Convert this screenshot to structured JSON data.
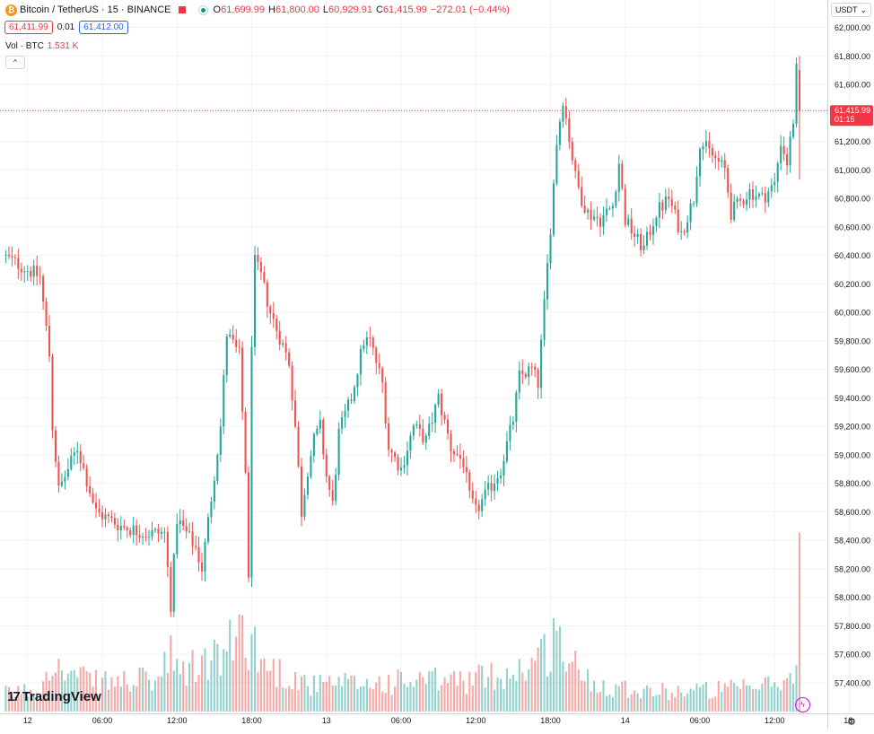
{
  "header": {
    "symbol_title": "Bitcoin / TetherUS · 15 · BINANCE",
    "ohlc": [
      {
        "k": "O",
        "v": "61,699.99"
      },
      {
        "k": "H",
        "v": "61,800.00"
      },
      {
        "k": "L",
        "v": "60,929.91"
      },
      {
        "k": "C",
        "v": "61,415.99"
      }
    ],
    "change": "−272.01 (−0.44%)",
    "bid": "61,411.99",
    "spread": "0.01",
    "ask": "61,412.00",
    "volume_label": "Vol · BTC",
    "volume_value": "1.531 K",
    "collapse_glyph": "^"
  },
  "price_scale": {
    "currency": "USDT",
    "dropdown_glyph": "⌄"
  },
  "last_price": {
    "value": "61,415.99",
    "countdown": "01:15",
    "color": "#f23645"
  },
  "branding": {
    "name": "TradingView",
    "mark": "17"
  },
  "colors": {
    "up": "#26a69a",
    "down": "#ef5350",
    "grid": "#f0f3fa",
    "text": "#131722"
  },
  "icons": {
    "settings": "gear-icon",
    "lightning": "lightning-icon",
    "symbol": "bitcoin-icon"
  },
  "chart_data": {
    "type": "candlestick",
    "interval": "15",
    "ylim": [
      57300,
      62150
    ],
    "y_ticks": [
      57400,
      57600,
      57800,
      58000,
      58200,
      58400,
      58600,
      58800,
      59000,
      59200,
      59400,
      59600,
      59800,
      60000,
      60200,
      60400,
      60600,
      60800,
      61000,
      61200,
      61400,
      61600,
      61800,
      62000
    ],
    "y_tick_labels": [
      "57,400.00",
      "57,600.00",
      "57,800.00",
      "58,000.00",
      "58,200.00",
      "58,400.00",
      "58,600.00",
      "58,800.00",
      "59,000.00",
      "59,200.00",
      "59,400.00",
      "59,600.00",
      "59,800.00",
      "60,000.00",
      "60,200.00",
      "60,400.00",
      "60,600.00",
      "60,800.00",
      "61,000.00",
      "61,200.00",
      "61,400.00",
      "61,600.00",
      "61,800.00",
      "62,000.00"
    ],
    "x_ticks": [
      {
        "i": 8,
        "label": "12"
      },
      {
        "i": 32,
        "label": "06:00"
      },
      {
        "i": 56,
        "label": "12:00"
      },
      {
        "i": 80,
        "label": "18:00"
      },
      {
        "i": 104,
        "label": "13"
      },
      {
        "i": 128,
        "label": "06:00"
      },
      {
        "i": 152,
        "label": "12:00"
      },
      {
        "i": 176,
        "label": "18:00"
      },
      {
        "i": 200,
        "label": "14"
      },
      {
        "i": 224,
        "label": "06:00"
      },
      {
        "i": 248,
        "label": "12:00"
      },
      {
        "i": 272,
        "label": "18:"
      }
    ],
    "path": [
      [
        0,
        60400
      ],
      [
        12,
        60250
      ],
      [
        15,
        59700
      ],
      [
        16,
        59200
      ],
      [
        18,
        58750
      ],
      [
        24,
        59050
      ],
      [
        30,
        58600
      ],
      [
        38,
        58500
      ],
      [
        46,
        58450
      ],
      [
        52,
        58450
      ],
      [
        54,
        57950
      ],
      [
        56,
        58550
      ],
      [
        62,
        58350
      ],
      [
        64,
        58200
      ],
      [
        70,
        59200
      ],
      [
        72,
        59850
      ],
      [
        76,
        59700
      ],
      [
        78,
        58900
      ],
      [
        79,
        58100
      ],
      [
        80,
        59800
      ],
      [
        81,
        60350
      ],
      [
        83,
        60250
      ],
      [
        86,
        60000
      ],
      [
        92,
        59650
      ],
      [
        94,
        59200
      ],
      [
        96,
        58600
      ],
      [
        98,
        58900
      ],
      [
        100,
        59100
      ],
      [
        102,
        59200
      ],
      [
        104,
        58850
      ],
      [
        106,
        58650
      ],
      [
        108,
        59150
      ],
      [
        112,
        59400
      ],
      [
        116,
        59800
      ],
      [
        118,
        59800
      ],
      [
        122,
        59500
      ],
      [
        124,
        59050
      ],
      [
        128,
        58900
      ],
      [
        132,
        59200
      ],
      [
        136,
        59100
      ],
      [
        140,
        59400
      ],
      [
        144,
        59050
      ],
      [
        148,
        58950
      ],
      [
        150,
        58700
      ],
      [
        152,
        58600
      ],
      [
        156,
        58750
      ],
      [
        160,
        58900
      ],
      [
        164,
        59250
      ],
      [
        166,
        59550
      ],
      [
        170,
        59600
      ],
      [
        172,
        59500
      ],
      [
        174,
        60050
      ],
      [
        176,
        60600
      ],
      [
        178,
        61200
      ],
      [
        180,
        61500
      ],
      [
        184,
        60950
      ],
      [
        186,
        60800
      ],
      [
        188,
        60700
      ],
      [
        192,
        60650
      ],
      [
        196,
        60750
      ],
      [
        198,
        61050
      ],
      [
        200,
        60650
      ],
      [
        204,
        60500
      ],
      [
        206,
        60450
      ],
      [
        210,
        60700
      ],
      [
        214,
        60800
      ],
      [
        218,
        60550
      ],
      [
        222,
        60800
      ],
      [
        224,
        61200
      ],
      [
        228,
        61100
      ],
      [
        232,
        61000
      ],
      [
        234,
        60700
      ],
      [
        236,
        60750
      ],
      [
        240,
        60850
      ],
      [
        244,
        60800
      ],
      [
        248,
        60900
      ],
      [
        250,
        61200
      ],
      [
        252,
        61050
      ],
      [
        254,
        61350
      ],
      [
        255,
        61700
      ],
      [
        256,
        61415.99
      ]
    ],
    "volume_path": [
      [
        0,
        0.12
      ],
      [
        12,
        0.16
      ],
      [
        16,
        0.45
      ],
      [
        18,
        0.28
      ],
      [
        30,
        0.2
      ],
      [
        50,
        0.22
      ],
      [
        54,
        0.38
      ],
      [
        56,
        0.26
      ],
      [
        66,
        0.35
      ],
      [
        72,
        0.4
      ],
      [
        76,
        0.58
      ],
      [
        80,
        0.5
      ],
      [
        84,
        0.32
      ],
      [
        100,
        0.18
      ],
      [
        120,
        0.2
      ],
      [
        150,
        0.22
      ],
      [
        165,
        0.28
      ],
      [
        174,
        0.4
      ],
      [
        178,
        0.55
      ],
      [
        182,
        0.34
      ],
      [
        190,
        0.2
      ],
      [
        210,
        0.14
      ],
      [
        240,
        0.16
      ],
      [
        254,
        0.22
      ],
      [
        256,
        0.95
      ]
    ]
  }
}
